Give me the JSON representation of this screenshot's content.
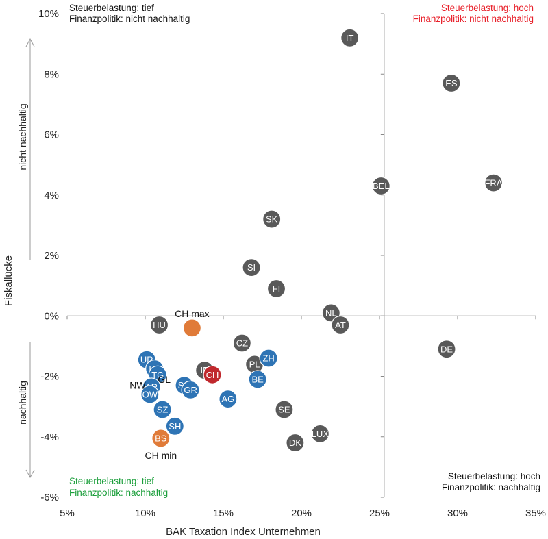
{
  "chart_data": {
    "type": "scatter",
    "title": "",
    "xlabel": "BAK Taxation Index Unternehmen",
    "ylabel": "Fiskallücke",
    "xlim": [
      5,
      35
    ],
    "ylim": [
      -6,
      10
    ],
    "x_ticks": [
      5,
      10,
      15,
      20,
      25,
      30,
      35
    ],
    "x_tick_labels": [
      "5%",
      "10%",
      "15%",
      "20%",
      "25%",
      "30%",
      "35%"
    ],
    "y_ticks": [
      10,
      8,
      6,
      4,
      2,
      0,
      -2,
      -4,
      -6
    ],
    "y_tick_labels": [
      "10%",
      "8%",
      "6%",
      "4%",
      "2%",
      "0%",
      "-2%",
      "-4%",
      "-6%"
    ],
    "grid": false,
    "divider_x": 25.3,
    "colors": {
      "country": "#595959",
      "canton": "#2e74b5",
      "ch": "#c0282d",
      "range": "#e07b39",
      "axis": "#888888",
      "quadrant_red": "#e8202a",
      "quadrant_green": "#1a9e3a",
      "quadrant_black": "#111111"
    },
    "series": [
      {
        "group": "country",
        "points": [
          {
            "label": "IT",
            "x": 23.1,
            "y": 9.2
          },
          {
            "label": "ES",
            "x": 29.6,
            "y": 7.7
          },
          {
            "label": "BEL",
            "x": 25.1,
            "y": 4.3
          },
          {
            "label": "FRA",
            "x": 32.3,
            "y": 4.4
          },
          {
            "label": "SK",
            "x": 18.1,
            "y": 3.2
          },
          {
            "label": "SI",
            "x": 16.8,
            "y": 1.6
          },
          {
            "label": "FI",
            "x": 18.4,
            "y": 0.9
          },
          {
            "label": "NL",
            "x": 21.9,
            "y": 0.1
          },
          {
            "label": "AT",
            "x": 22.5,
            "y": -0.3
          },
          {
            "label": "HU",
            "x": 10.9,
            "y": -0.3
          },
          {
            "label": "CZ",
            "x": 16.2,
            "y": -0.9
          },
          {
            "label": "DE",
            "x": 29.3,
            "y": -1.1
          },
          {
            "label": "IE",
            "x": 13.8,
            "y": -1.8
          },
          {
            "label": "PL",
            "x": 17.0,
            "y": -1.6
          },
          {
            "label": "SE",
            "x": 18.9,
            "y": -3.1
          },
          {
            "label": "LUX",
            "x": 21.2,
            "y": -3.9
          },
          {
            "label": "DK",
            "x": 19.6,
            "y": -4.2
          }
        ]
      },
      {
        "group": "canton",
        "points": [
          {
            "label": "ZH",
            "x": 17.9,
            "y": -1.4
          },
          {
            "label": "BE",
            "x": 17.2,
            "y": -2.1
          },
          {
            "label": "AG",
            "x": 15.3,
            "y": -2.75
          },
          {
            "label": "UR",
            "x": 10.1,
            "y": -1.45
          },
          {
            "label": "LU",
            "x": 10.6,
            "y": -1.75
          },
          {
            "label": "TG",
            "x": 10.8,
            "y": -1.95
          },
          {
            "label": "SG",
            "x": 12.5,
            "y": -2.3
          },
          {
            "label": "GR",
            "x": 12.9,
            "y": -2.45
          },
          {
            "label": "AR",
            "x": 10.4,
            "y": -2.35
          },
          {
            "label": "OW",
            "x": 10.3,
            "y": -2.6
          },
          {
            "label": "SZ",
            "x": 11.1,
            "y": -3.1
          },
          {
            "label": "SH",
            "x": 11.9,
            "y": -3.65
          }
        ]
      },
      {
        "group": "ch",
        "points": [
          {
            "label": "CH",
            "x": 14.3,
            "y": -1.95
          }
        ]
      },
      {
        "group": "range",
        "points": [
          {
            "label": "BS",
            "x": 11.0,
            "y": -4.05
          },
          {
            "label": "",
            "x": 13.0,
            "y": -0.4
          }
        ]
      }
    ],
    "external_labels": [
      {
        "text": "CH max",
        "anchor_x": 13.0,
        "anchor_y": -0.4,
        "pos": "above"
      },
      {
        "text": "CH min",
        "anchor_x": 11.0,
        "anchor_y": -4.05,
        "pos": "below"
      },
      {
        "text": "NW",
        "anchor_x": 10.2,
        "anchor_y": -2.3,
        "pos": "left"
      },
      {
        "text": "GL",
        "anchor_x": 11.8,
        "anchor_y": -2.1,
        "pos": "left"
      }
    ],
    "side_labels": {
      "top": "nicht  nachhaltig",
      "bottom": "nachhaltig"
    },
    "quadrants": {
      "top_left": {
        "line1": "Steuerbelastung: tief",
        "line2": "Finanzpolitik: nicht nachhaltig",
        "color": "black"
      },
      "top_right": {
        "line1": "Steuerbelastung: hoch",
        "line2": "Finanzpolitik: nicht nachhaltig",
        "color": "red"
      },
      "bottom_left": {
        "line1": "Steuerbelastung: tief",
        "line2": "Finanzpolitik: nachhaltig",
        "color": "green"
      },
      "bottom_right": {
        "line1": "Steuerbelastung: hoch",
        "line2": "Finanzpolitik: nachhaltig",
        "color": "black"
      }
    }
  }
}
